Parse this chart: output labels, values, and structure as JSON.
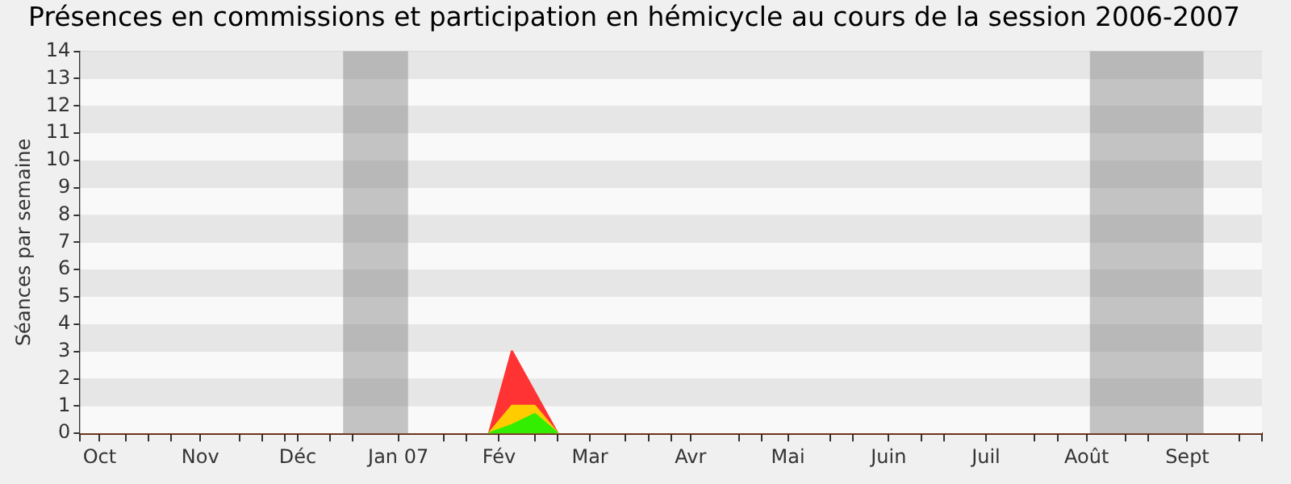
{
  "chart_data": {
    "type": "area",
    "title": "Présences en commissions et participation en hémicycle au cours de la session 2006-2007",
    "ylabel": "Séances par semaine",
    "xlim": [
      "2006-09-25",
      "2007-09-24"
    ],
    "ylim": [
      0,
      14
    ],
    "yticks": [
      0,
      1,
      2,
      3,
      4,
      5,
      6,
      7,
      8,
      9,
      10,
      11,
      12,
      13,
      14
    ],
    "xticks": [
      {
        "value": "2006-10-01",
        "label": "Oct"
      },
      {
        "value": "2006-11-01",
        "label": "Nov"
      },
      {
        "value": "2006-12-01",
        "label": "Déc"
      },
      {
        "value": "2007-01-01",
        "label": "Jan 07"
      },
      {
        "value": "2007-02-01",
        "label": "Fév"
      },
      {
        "value": "2007-03-01",
        "label": "Mar"
      },
      {
        "value": "2007-04-01",
        "label": "Avr"
      },
      {
        "value": "2007-05-01",
        "label": "Mai"
      },
      {
        "value": "2007-06-01",
        "label": "Juin"
      },
      {
        "value": "2007-07-01",
        "label": "Juil"
      },
      {
        "value": "2007-08-01",
        "label": "Août"
      },
      {
        "value": "2007-09-01",
        "label": "Sept"
      },
      {
        "value": "2006-09-25",
        "label": null
      },
      {
        "value": "2006-10-09",
        "label": null
      },
      {
        "value": "2006-10-16",
        "label": null
      },
      {
        "value": "2006-10-23",
        "label": null
      },
      {
        "value": "2006-11-13",
        "label": null
      },
      {
        "value": "2006-11-20",
        "label": null
      },
      {
        "value": "2006-11-27",
        "label": null
      },
      {
        "value": "2006-12-11",
        "label": null
      },
      {
        "value": "2006-12-18",
        "label": null
      },
      {
        "value": "2007-01-15",
        "label": null
      },
      {
        "value": "2007-01-22",
        "label": null
      },
      {
        "value": "2007-02-12",
        "label": null
      },
      {
        "value": "2007-02-19",
        "label": null
      },
      {
        "value": "2007-03-12",
        "label": null
      },
      {
        "value": "2007-03-19",
        "label": null
      },
      {
        "value": "2007-03-26",
        "label": null
      },
      {
        "value": "2007-04-16",
        "label": null
      },
      {
        "value": "2007-04-23",
        "label": null
      },
      {
        "value": "2007-05-14",
        "label": null
      },
      {
        "value": "2007-05-21",
        "label": null
      },
      {
        "value": "2007-06-11",
        "label": null
      },
      {
        "value": "2007-06-18",
        "label": null
      },
      {
        "value": "2007-07-16",
        "label": null
      },
      {
        "value": "2007-07-23",
        "label": null
      },
      {
        "value": "2007-08-13",
        "label": null
      },
      {
        "value": "2007-08-20",
        "label": null
      },
      {
        "value": "2007-09-17",
        "label": null
      },
      {
        "value": "2007-09-24",
        "label": null
      }
    ],
    "series": [
      {
        "color": "#ff3333",
        "x": [
          "2007-01-29",
          "2007-02-05",
          "2007-02-12",
          "2007-02-19"
        ],
        "values": [
          0,
          3,
          1.5,
          0
        ]
      },
      {
        "color": "#ffcc00",
        "x": [
          "2007-01-29",
          "2007-02-05",
          "2007-02-12",
          "2007-02-19"
        ],
        "values": [
          0,
          1,
          1,
          0
        ]
      },
      {
        "color": "#33ee00",
        "x": [
          "2007-01-29",
          "2007-02-05",
          "2007-02-12",
          "2007-02-19"
        ],
        "values": [
          0,
          0.3,
          0.7,
          0
        ]
      }
    ],
    "bands": [
      {
        "axis": "x",
        "from": "2006-12-15",
        "to": "2007-01-04",
        "label": null,
        "color": "#808080"
      },
      {
        "axis": "x",
        "from": "2007-08-02",
        "to": "2007-09-06",
        "label": null,
        "color": "#808080"
      }
    ],
    "grid": "y",
    "legend": false
  }
}
